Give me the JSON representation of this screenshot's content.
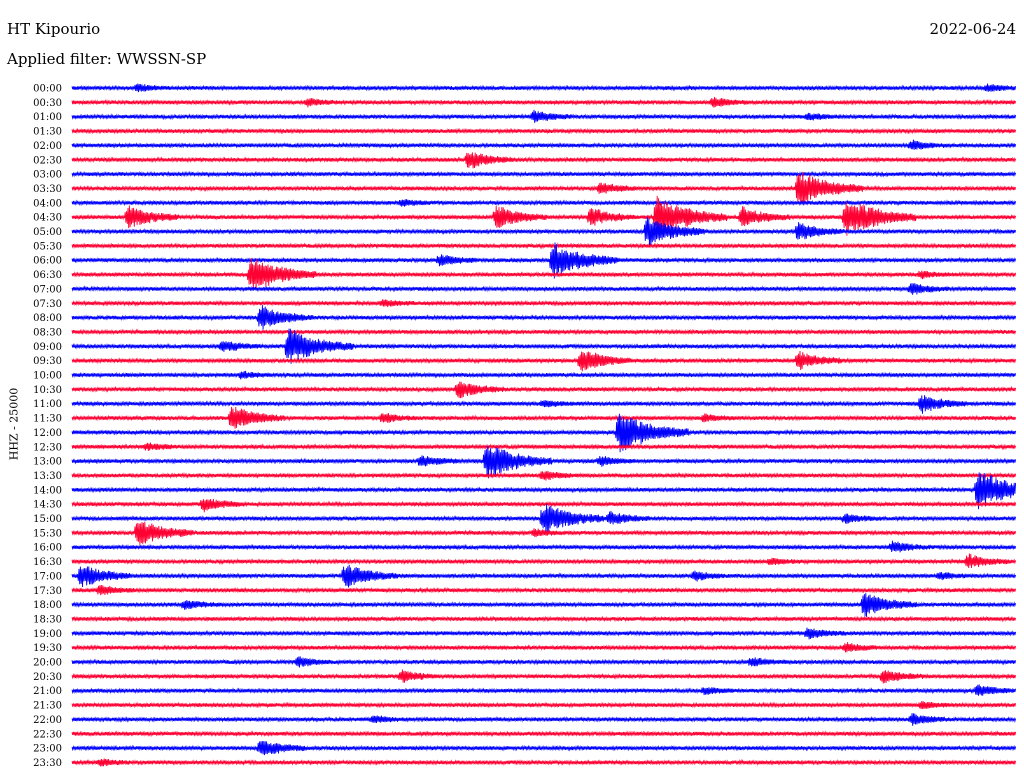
{
  "header": {
    "station": "HT Kipourio",
    "date": "2022-06-24",
    "filter": "Applied filter: WWSSN-SP"
  },
  "chart_data": {
    "type": "line",
    "ylabel": "HHZ - 25000",
    "colors": {
      "even_rows": "#0000ff",
      "odd_rows": "#ff0033"
    },
    "rows": [
      {
        "time": "00:00",
        "events": [
          {
            "pos": 0.07,
            "amp": 0.3
          },
          {
            "pos": 0.97,
            "amp": 0.3
          }
        ]
      },
      {
        "time": "00:30",
        "events": [
          {
            "pos": 0.25,
            "amp": 0.3
          },
          {
            "pos": 0.68,
            "amp": 0.4
          }
        ]
      },
      {
        "time": "01:00",
        "events": [
          {
            "pos": 0.49,
            "amp": 0.5
          },
          {
            "pos": 0.78,
            "amp": 0.3
          }
        ]
      },
      {
        "time": "01:30",
        "events": []
      },
      {
        "time": "02:00",
        "events": [
          {
            "pos": 0.89,
            "amp": 0.4
          }
        ]
      },
      {
        "time": "02:30",
        "events": [
          {
            "pos": 0.42,
            "amp": 0.8
          }
        ]
      },
      {
        "time": "03:00",
        "events": []
      },
      {
        "time": "03:30",
        "events": [
          {
            "pos": 0.56,
            "amp": 0.5
          },
          {
            "pos": 0.77,
            "amp": 1.6
          }
        ]
      },
      {
        "time": "04:00",
        "events": [
          {
            "pos": 0.35,
            "amp": 0.3
          }
        ]
      },
      {
        "time": "04:30",
        "events": [
          {
            "pos": 0.06,
            "amp": 1.0
          },
          {
            "pos": 0.45,
            "amp": 1.0
          },
          {
            "pos": 0.55,
            "amp": 0.8
          },
          {
            "pos": 0.62,
            "amp": 1.8
          },
          {
            "pos": 0.71,
            "amp": 0.9
          },
          {
            "pos": 0.82,
            "amp": 1.8
          }
        ]
      },
      {
        "time": "05:00",
        "events": [
          {
            "pos": 0.61,
            "amp": 1.3
          },
          {
            "pos": 0.77,
            "amp": 0.8
          }
        ]
      },
      {
        "time": "05:30",
        "events": []
      },
      {
        "time": "06:00",
        "events": [
          {
            "pos": 0.39,
            "amp": 0.5
          },
          {
            "pos": 0.51,
            "amp": 1.6
          }
        ]
      },
      {
        "time": "06:30",
        "events": [
          {
            "pos": 0.19,
            "amp": 1.6
          },
          {
            "pos": 0.9,
            "amp": 0.3
          }
        ]
      },
      {
        "time": "07:00",
        "events": [
          {
            "pos": 0.89,
            "amp": 0.5
          }
        ]
      },
      {
        "time": "07:30",
        "events": [
          {
            "pos": 0.33,
            "amp": 0.3
          }
        ]
      },
      {
        "time": "08:00",
        "events": [
          {
            "pos": 0.2,
            "amp": 1.1
          }
        ]
      },
      {
        "time": "08:30",
        "events": []
      },
      {
        "time": "09:00",
        "events": [
          {
            "pos": 0.16,
            "amp": 0.5
          },
          {
            "pos": 0.23,
            "amp": 1.6
          }
        ]
      },
      {
        "time": "09:30",
        "events": [
          {
            "pos": 0.54,
            "amp": 1.0
          },
          {
            "pos": 0.77,
            "amp": 0.8
          }
        ]
      },
      {
        "time": "10:00",
        "events": [
          {
            "pos": 0.18,
            "amp": 0.3
          }
        ]
      },
      {
        "time": "10:30",
        "events": [
          {
            "pos": 0.41,
            "amp": 0.8
          }
        ]
      },
      {
        "time": "11:00",
        "events": [
          {
            "pos": 0.5,
            "amp": 0.3
          },
          {
            "pos": 0.9,
            "amp": 0.8
          }
        ]
      },
      {
        "time": "11:30",
        "events": [
          {
            "pos": 0.17,
            "amp": 1.1
          },
          {
            "pos": 0.33,
            "amp": 0.4
          },
          {
            "pos": 0.67,
            "amp": 0.3
          }
        ]
      },
      {
        "time": "12:00",
        "events": [
          {
            "pos": 0.58,
            "amp": 1.8
          }
        ]
      },
      {
        "time": "12:30",
        "events": [
          {
            "pos": 0.08,
            "amp": 0.3
          }
        ]
      },
      {
        "time": "13:00",
        "events": [
          {
            "pos": 0.37,
            "amp": 0.5
          },
          {
            "pos": 0.44,
            "amp": 1.6
          },
          {
            "pos": 0.56,
            "amp": 0.4
          }
        ]
      },
      {
        "time": "13:30",
        "events": [
          {
            "pos": 0.5,
            "amp": 0.4
          }
        ]
      },
      {
        "time": "14:00",
        "events": [
          {
            "pos": 0.96,
            "amp": 1.8
          }
        ]
      },
      {
        "time": "14:30",
        "events": [
          {
            "pos": 0.14,
            "amp": 0.6
          }
        ]
      },
      {
        "time": "15:00",
        "events": [
          {
            "pos": 0.5,
            "amp": 1.4
          },
          {
            "pos": 0.57,
            "amp": 0.6
          },
          {
            "pos": 0.82,
            "amp": 0.4
          }
        ]
      },
      {
        "time": "15:30",
        "events": [
          {
            "pos": 0.07,
            "amp": 1.2
          },
          {
            "pos": 0.49,
            "amp": 0.3
          }
        ]
      },
      {
        "time": "16:00",
        "events": [
          {
            "pos": 0.87,
            "amp": 0.5
          }
        ]
      },
      {
        "time": "16:30",
        "events": [
          {
            "pos": 0.74,
            "amp": 0.3
          },
          {
            "pos": 0.95,
            "amp": 0.6
          }
        ]
      },
      {
        "time": "17:00",
        "events": [
          {
            "pos": 0.01,
            "amp": 1.0
          },
          {
            "pos": 0.29,
            "amp": 1.1
          },
          {
            "pos": 0.66,
            "amp": 0.4
          },
          {
            "pos": 0.92,
            "amp": 0.3
          }
        ]
      },
      {
        "time": "17:30",
        "events": [
          {
            "pos": 0.03,
            "amp": 0.4
          }
        ]
      },
      {
        "time": "18:00",
        "events": [
          {
            "pos": 0.12,
            "amp": 0.4
          },
          {
            "pos": 0.84,
            "amp": 1.1
          }
        ]
      },
      {
        "time": "18:30",
        "events": []
      },
      {
        "time": "19:00",
        "events": [
          {
            "pos": 0.78,
            "amp": 0.5
          }
        ]
      },
      {
        "time": "19:30",
        "events": [
          {
            "pos": 0.82,
            "amp": 0.4
          }
        ]
      },
      {
        "time": "20:00",
        "events": [
          {
            "pos": 0.24,
            "amp": 0.4
          },
          {
            "pos": 0.72,
            "amp": 0.4
          }
        ]
      },
      {
        "time": "20:30",
        "events": [
          {
            "pos": 0.35,
            "amp": 0.5
          },
          {
            "pos": 0.86,
            "amp": 0.6
          }
        ]
      },
      {
        "time": "21:00",
        "events": [
          {
            "pos": 0.67,
            "amp": 0.3
          },
          {
            "pos": 0.96,
            "amp": 0.5
          }
        ]
      },
      {
        "time": "21:30",
        "events": [
          {
            "pos": 0.9,
            "amp": 0.3
          }
        ]
      },
      {
        "time": "22:00",
        "events": [
          {
            "pos": 0.32,
            "amp": 0.3
          },
          {
            "pos": 0.89,
            "amp": 0.5
          }
        ]
      },
      {
        "time": "22:30",
        "events": []
      },
      {
        "time": "23:00",
        "events": [
          {
            "pos": 0.2,
            "amp": 0.8
          }
        ]
      },
      {
        "time": "23:30",
        "events": [
          {
            "pos": 0.03,
            "amp": 0.3
          }
        ]
      }
    ]
  }
}
